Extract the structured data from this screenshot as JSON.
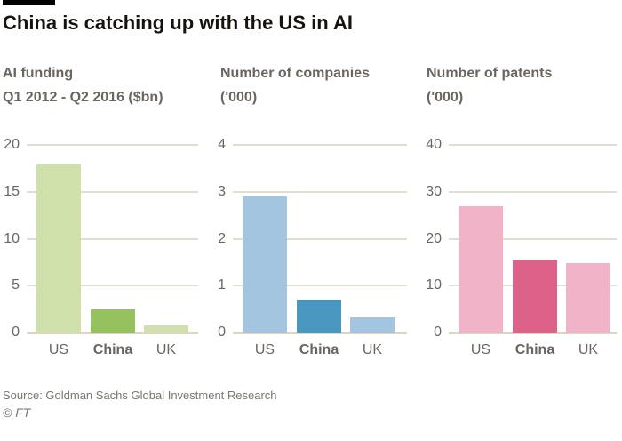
{
  "header": {
    "title": "China is catching up with the US in AI"
  },
  "footer": {
    "source": "Source: Goldman Sachs Global Investment Research",
    "copyright": "© FT"
  },
  "theme": {
    "title_color": "#16130f",
    "muted_text_color": "#6b6560",
    "gridline_color": "#e3ddcd",
    "background": "#ffffff"
  },
  "chart_data": [
    {
      "type": "bar",
      "title_line1": "AI funding",
      "title_line2": "Q1 2012 - Q2 2016 ($bn)",
      "categories": [
        "US",
        "China",
        "UK"
      ],
      "values": [
        17.9,
        2.5,
        0.8
      ],
      "ylim": [
        0,
        20
      ],
      "yticks": [
        0,
        5,
        10,
        15,
        20
      ],
      "grid": "on",
      "legend": "none",
      "highlight_category": "China",
      "bar_color": "#cfe0ab",
      "highlight_color": "#95c25f"
    },
    {
      "type": "bar",
      "title_line1": "Number of companies",
      "title_line2": "('000)",
      "categories": [
        "US",
        "China",
        "UK"
      ],
      "values": [
        2.9,
        0.7,
        0.33
      ],
      "ylim": [
        0,
        4
      ],
      "yticks": [
        0,
        1,
        2,
        3,
        4
      ],
      "grid": "on",
      "legend": "none",
      "highlight_category": "China",
      "bar_color": "#a4c5df",
      "highlight_color": "#4997c0"
    },
    {
      "type": "bar",
      "title_line1": "Number of patents",
      "title_line2": "('000)",
      "categories": [
        "US",
        "China",
        "UK"
      ],
      "values": [
        26.9,
        15.6,
        14.8
      ],
      "ylim": [
        0,
        40
      ],
      "yticks": [
        0,
        10,
        20,
        30,
        40
      ],
      "grid": "on",
      "legend": "none",
      "highlight_category": "China",
      "bar_color": "#f0b3c7",
      "highlight_color": "#dc6289"
    }
  ]
}
